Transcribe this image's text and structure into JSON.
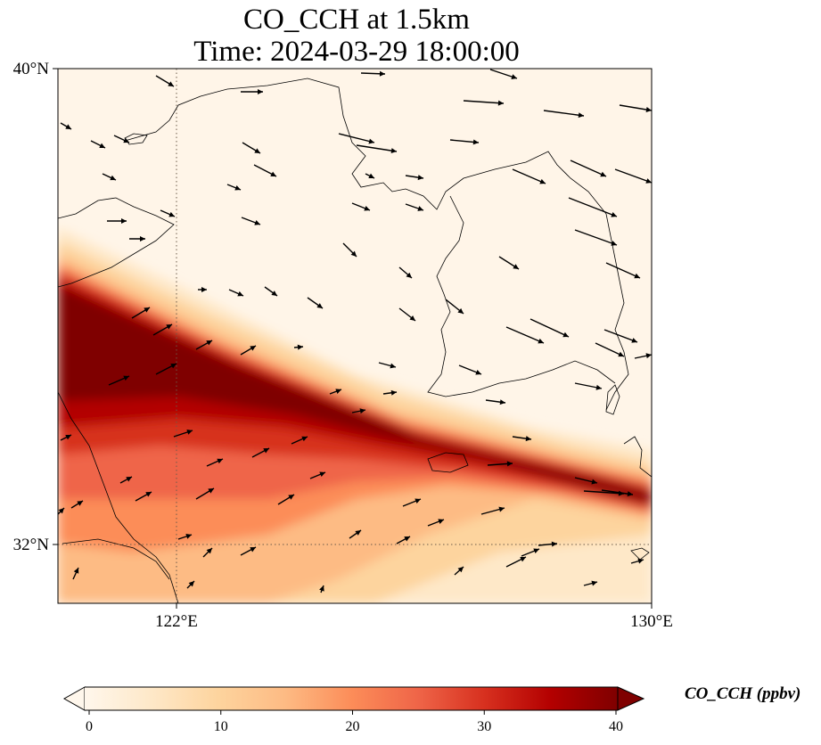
{
  "title": {
    "line1": "CO_CCH at 1.5km",
    "line2": "Time: 2024-03-29 18:00:00"
  },
  "map": {
    "extent": {
      "lon_min": 120,
      "lon_max": 130,
      "lat_min": 31,
      "lat_max": 40
    },
    "gridlines": {
      "lons": [
        122
      ],
      "lats": [
        32
      ],
      "style": "dotted"
    },
    "x_ticks": [
      {
        "lon": 122,
        "label": "122°E"
      },
      {
        "lon": 130,
        "label": "130°E"
      }
    ],
    "y_ticks": [
      {
        "lat": 40,
        "label": "40°N"
      },
      {
        "lat": 32,
        "label": "32°N"
      }
    ],
    "features": [
      "coastlines",
      "wind-vectors",
      "co-concentration-field"
    ]
  },
  "colorbar": {
    "label": "CO_CCH (ppbv)",
    "min": 0,
    "max": 40,
    "ticks": [
      "0",
      "10",
      "20",
      "30",
      "40"
    ],
    "colormap": [
      "#fff7ec",
      "#fee8c8",
      "#fdd49e",
      "#fdbb84",
      "#fc8d59",
      "#ef6548",
      "#d7301f",
      "#b30000",
      "#7f0000"
    ],
    "extend": "both"
  },
  "colors": {
    "land_background": "#fff5e8",
    "coastline": "#000000",
    "arrow": "#000000"
  }
}
